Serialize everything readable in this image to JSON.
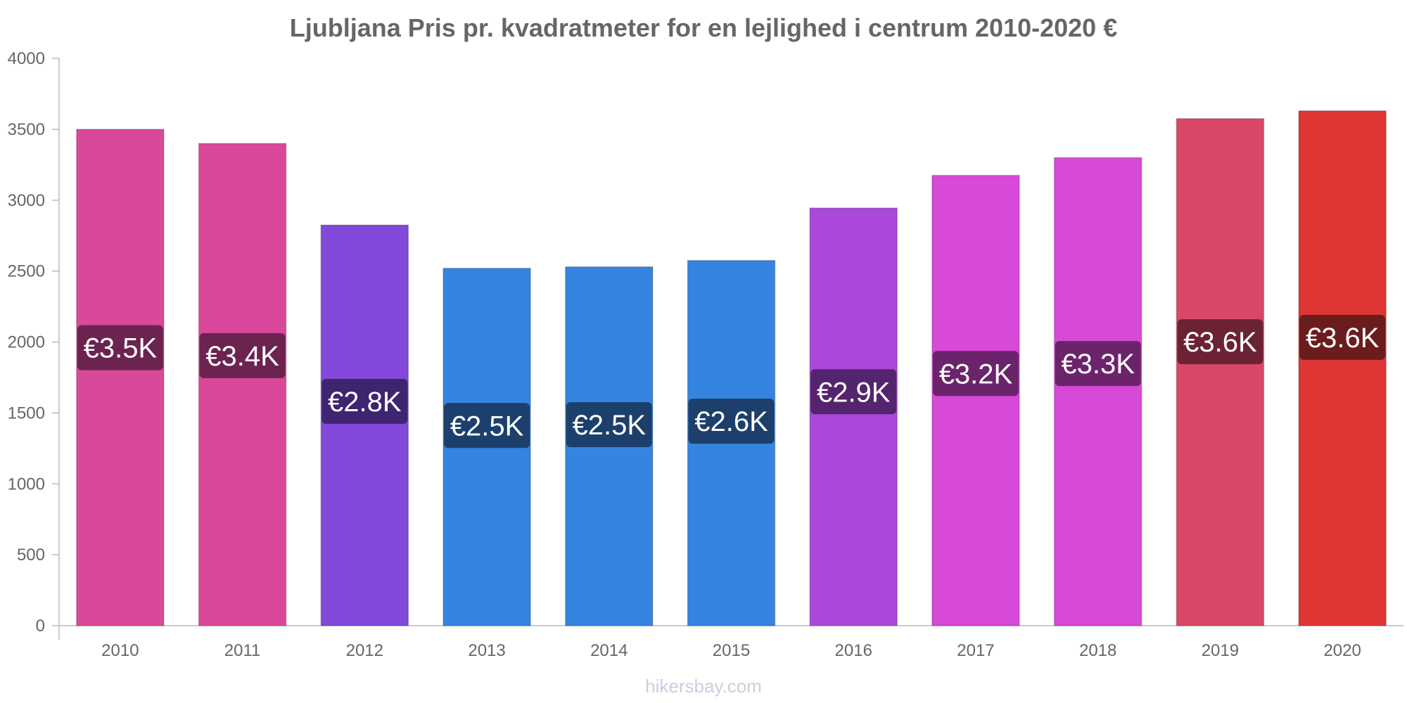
{
  "chart_data": {
    "type": "bar",
    "title": "Ljubljana Pris pr. kvadratmeter for en lejlighed i centrum 2010-2020 €",
    "xlabel": "",
    "ylabel": "",
    "categories": [
      "2010",
      "2011",
      "2012",
      "2013",
      "2014",
      "2015",
      "2016",
      "2017",
      "2018",
      "2019",
      "2020"
    ],
    "values": [
      3500,
      3400,
      2825,
      2520,
      2530,
      2575,
      2945,
      3175,
      3300,
      3575,
      3630
    ],
    "data_labels": [
      "€3.5K",
      "€3.4K",
      "€2.8K",
      "€2.5K",
      "€2.5K",
      "€2.6K",
      "€2.9K",
      "€3.2K",
      "€3.3K",
      "€3.6K",
      "€3.6K"
    ],
    "bar_colors": [
      "#d9489b",
      "#d9489b",
      "#8249db",
      "#3584e0",
      "#3584e0",
      "#3584e0",
      "#ab48db",
      "#d749d7",
      "#d749d7",
      "#d94866",
      "#e03535"
    ],
    "label_bg_colors": [
      "#6b2350",
      "#6b2350",
      "#3f2470",
      "#1d3f6b",
      "#1d3f6b",
      "#1d3f6b",
      "#55246f",
      "#6b246b",
      "#6b246b",
      "#6b2334",
      "#6b1c1c"
    ],
    "yticks": [
      0,
      500,
      1000,
      1500,
      2000,
      2500,
      3000,
      3500,
      4000
    ],
    "ylim": [
      0,
      4000
    ],
    "grid": false,
    "legend": "none"
  },
  "watermark": "hikersbay.com"
}
